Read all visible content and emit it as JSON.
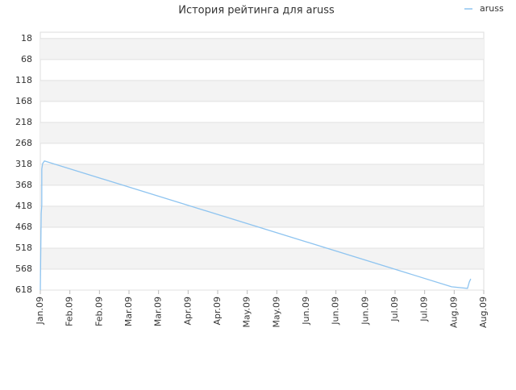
{
  "chart_data": {
    "type": "line",
    "title": "История рейтинга для aruss",
    "xlim": [
      0,
      15
    ],
    "xticks": [
      {
        "value": 0,
        "label": "Jan.09"
      },
      {
        "value": 1,
        "label": "Feb.09"
      },
      {
        "value": 2,
        "label": "Feb.09"
      },
      {
        "value": 3,
        "label": "Mar.09"
      },
      {
        "value": 4,
        "label": "Mar.09"
      },
      {
        "value": 5,
        "label": "Apr.09"
      },
      {
        "value": 6,
        "label": "Apr.09"
      },
      {
        "value": 7,
        "label": "May.09"
      },
      {
        "value": 8,
        "label": "May.09"
      },
      {
        "value": 9,
        "label": "Jun.09"
      },
      {
        "value": 10,
        "label": "Jun.09"
      },
      {
        "value": 11,
        "label": "Jun.09"
      },
      {
        "value": 12,
        "label": "Jul.09"
      },
      {
        "value": 13,
        "label": "Jul.09"
      },
      {
        "value": 14,
        "label": "Aug.09"
      },
      {
        "value": 15,
        "label": "Aug.09"
      }
    ],
    "ylim": [
      618,
      3
    ],
    "yticks": [
      18,
      68,
      118,
      168,
      218,
      268,
      318,
      368,
      418,
      468,
      518,
      568,
      618
    ],
    "grid": true,
    "legend": "top-right",
    "series": [
      {
        "name": "aruss",
        "color": "#8ec4f0",
        "x": [
          0,
          0.03,
          0.05,
          0.05,
          0.08,
          0.14,
          13.91,
          14.45,
          14.51,
          14.56
        ],
        "values": [
          618,
          435,
          416,
          329,
          316,
          310,
          610,
          614,
          599,
          591
        ]
      }
    ]
  }
}
